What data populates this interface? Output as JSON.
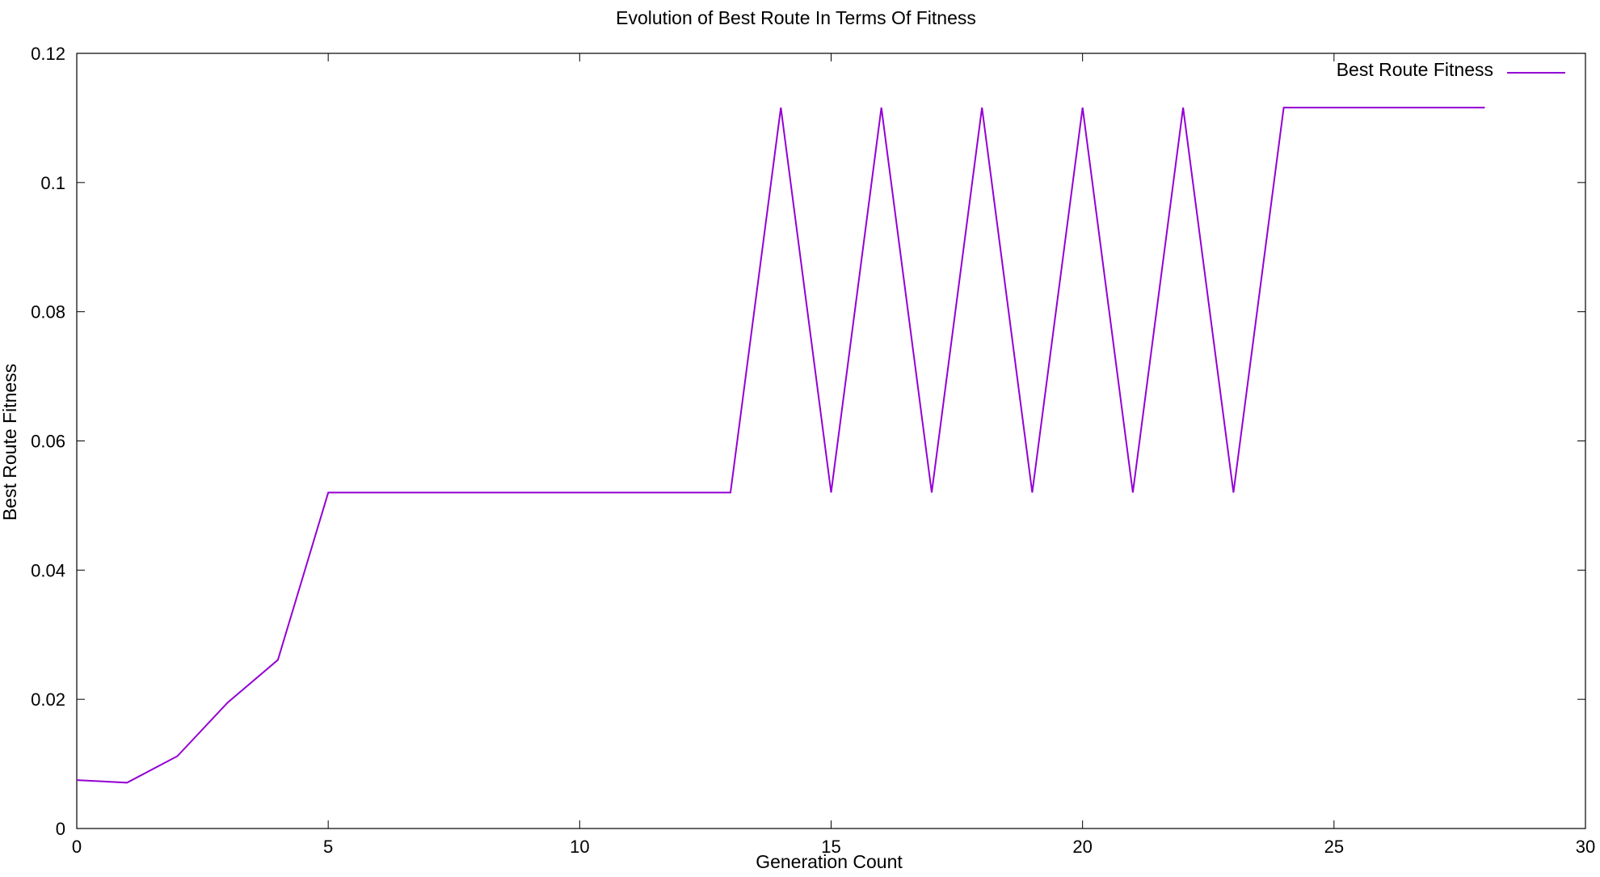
{
  "chart_data": {
    "type": "line",
    "title": "Evolution of Best Route In Terms Of Fitness",
    "xlabel": "Generation Count",
    "ylabel": "Best Route Fitness",
    "xlim": [
      0,
      30
    ],
    "ylim": [
      0,
      0.12
    ],
    "xticks": [
      0,
      5,
      10,
      15,
      20,
      25,
      30
    ],
    "yticks": [
      0,
      0.02,
      0.04,
      0.06,
      0.08,
      0.1,
      0.12
    ],
    "xtick_labels": [
      "0",
      "5",
      "10",
      "15",
      "20",
      "25",
      "30"
    ],
    "ytick_labels": [
      "0",
      "0.02",
      "0.04",
      "0.06",
      "0.08",
      "0.1",
      "0.12"
    ],
    "grid": false,
    "legend_position": "top-right",
    "series": [
      {
        "name": "Best Route Fitness",
        "color": "#9400d3",
        "x": [
          0,
          1,
          2,
          3,
          4,
          5,
          6,
          7,
          8,
          9,
          10,
          11,
          12,
          13,
          14,
          15,
          16,
          17,
          18,
          19,
          20,
          21,
          22,
          23,
          24,
          25,
          26,
          27,
          28
        ],
        "y": [
          0.0075,
          0.0071,
          0.0112,
          0.0195,
          0.0261,
          0.052,
          0.052,
          0.052,
          0.052,
          0.052,
          0.052,
          0.052,
          0.052,
          0.052,
          0.1116,
          0.052,
          0.1116,
          0.052,
          0.1116,
          0.052,
          0.1116,
          0.052,
          0.1116,
          0.052,
          0.1116,
          0.1116,
          0.1116,
          0.1116,
          0.1116
        ]
      }
    ]
  }
}
